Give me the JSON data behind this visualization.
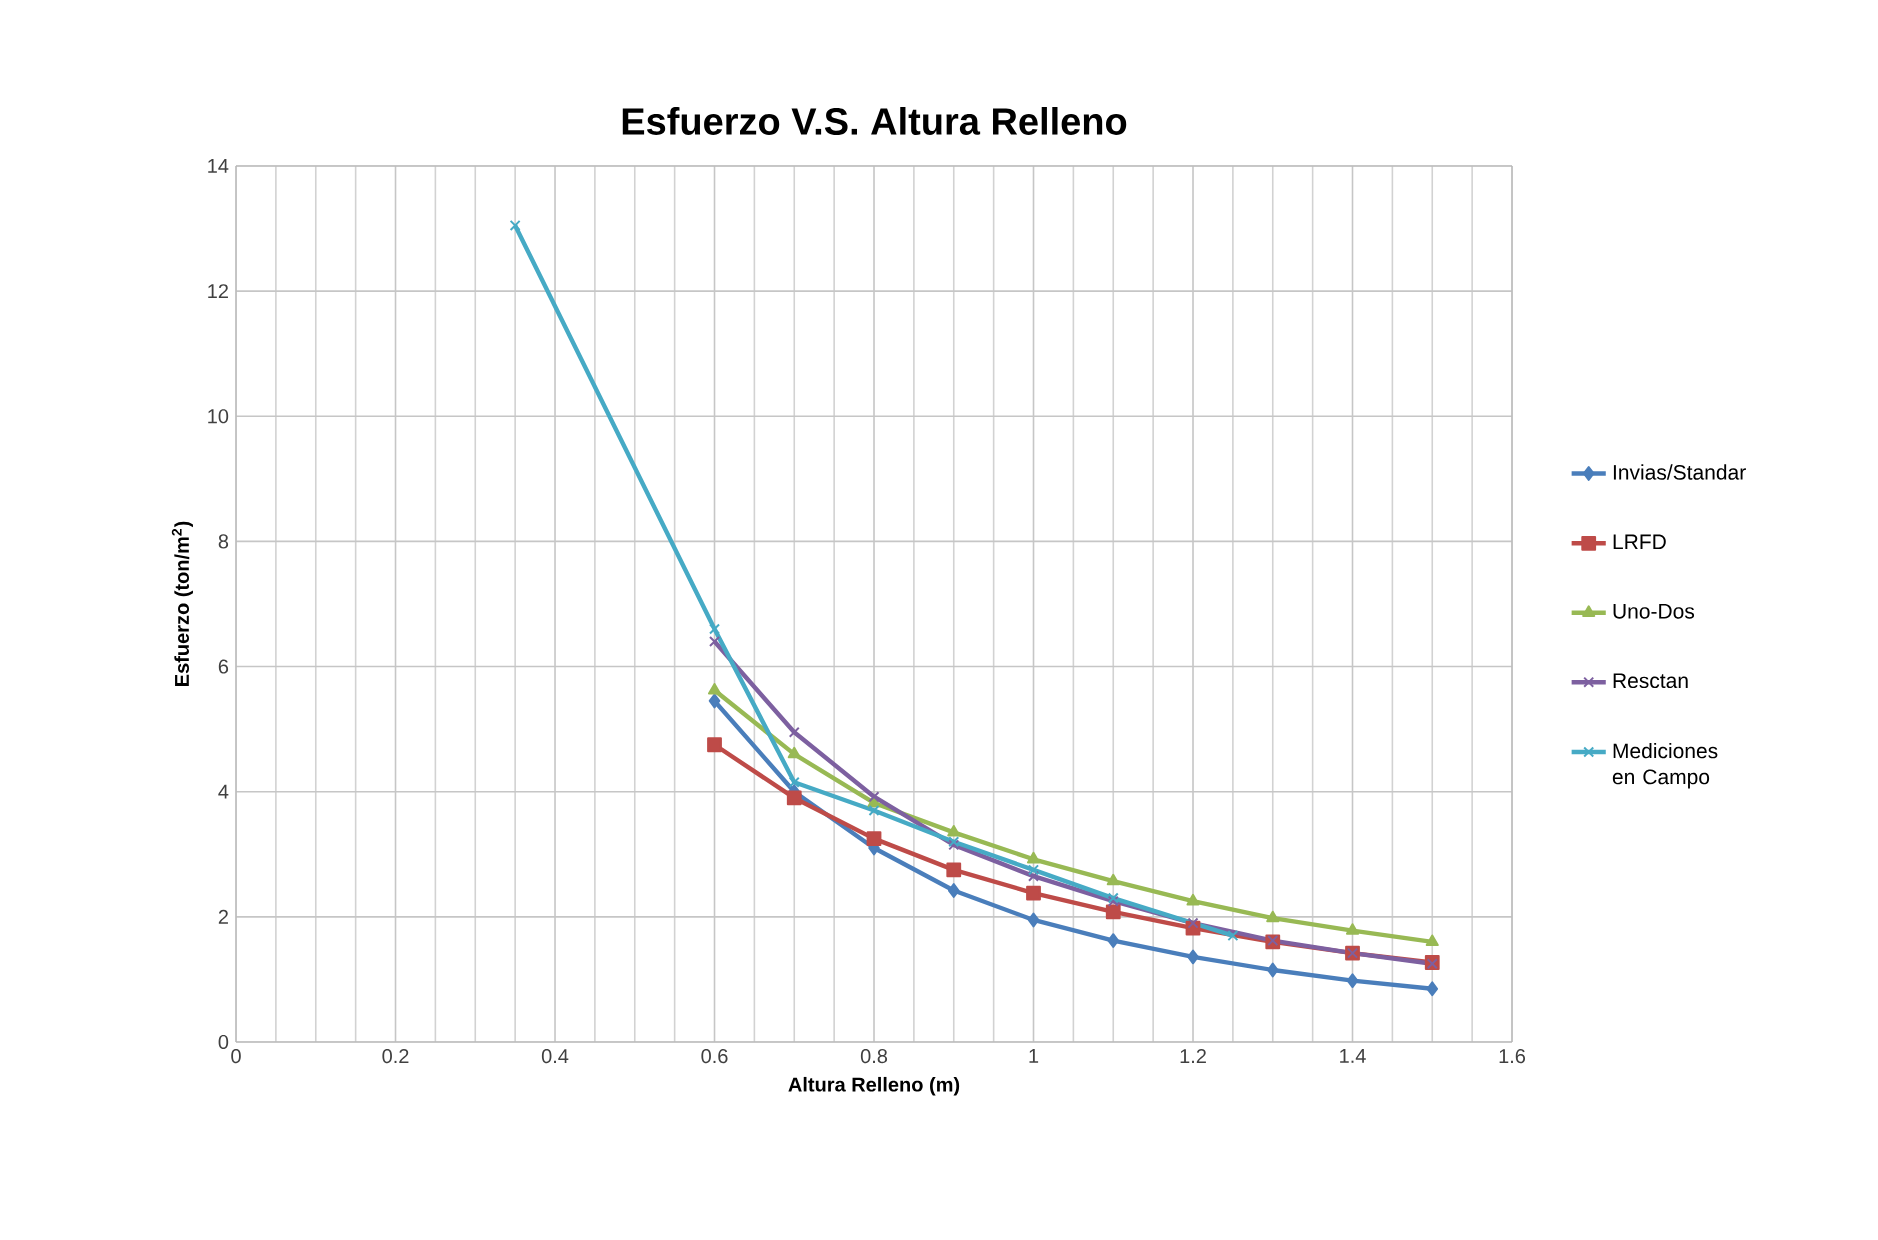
{
  "chart_data": {
    "type": "line",
    "title": "Esfuerzo V.S. Altura Relleno",
    "xlabel": "Altura Relleno (m)",
    "ylabel": "Esfuerzo (ton/m$^{2}$)",
    "xlim": [
      0,
      1.6
    ],
    "xticks": [
      0,
      0.2,
      0.4,
      0.6,
      0.8,
      1,
      1.2,
      1.4,
      1.6
    ],
    "ylim": [
      0,
      14
    ],
    "yticks": [
      0,
      2,
      4,
      6,
      8,
      10,
      12,
      14
    ],
    "grid": true,
    "legend": "right",
    "series": [
      {
        "name": "Invias/Standar",
        "color": "#4a7ebb",
        "marker": "diamond",
        "x": [
          0.6,
          0.7,
          0.8,
          0.9,
          1.0,
          1.1,
          1.2,
          1.3,
          1.4,
          1.5
        ],
        "values": [
          5.45,
          4.0,
          3.1,
          2.42,
          1.95,
          1.62,
          1.36,
          1.15,
          0.98,
          0.85
        ]
      },
      {
        "name": "LRFD",
        "color": "#be4b48",
        "marker": "square",
        "x": [
          0.6,
          0.7,
          0.8,
          0.9,
          1.0,
          1.1,
          1.2,
          1.3,
          1.4,
          1.5
        ],
        "values": [
          4.75,
          3.9,
          3.25,
          2.75,
          2.38,
          2.08,
          1.82,
          1.6,
          1.42,
          1.27
        ]
      },
      {
        "name": "Uno-Dos",
        "color": "#98b954",
        "marker": "triangle",
        "x": [
          0.6,
          0.7,
          0.8,
          0.9,
          1.0,
          1.1,
          1.2,
          1.3,
          1.4,
          1.5
        ],
        "values": [
          5.62,
          4.6,
          3.82,
          3.35,
          2.92,
          2.57,
          2.25,
          1.98,
          1.78,
          1.6
        ]
      },
      {
        "name": "Resctan",
        "color": "#7d60a0",
        "marker": "cross",
        "x": [
          0.6,
          0.7,
          0.8,
          0.9,
          1.0,
          1.1,
          1.2,
          1.3,
          1.4,
          1.5
        ],
        "values": [
          6.4,
          4.95,
          3.92,
          3.15,
          2.65,
          2.25,
          1.9,
          1.62,
          1.42,
          1.25
        ]
      },
      {
        "name": "Mediciones en Campo",
        "color": "#46aac5",
        "marker": "cross",
        "x": [
          0.35,
          0.6,
          0.7,
          0.8,
          0.9,
          1.0,
          1.1,
          1.25
        ],
        "values": [
          13.05,
          6.6,
          4.15,
          3.7,
          3.2,
          2.75,
          2.3,
          1.7
        ]
      }
    ]
  }
}
